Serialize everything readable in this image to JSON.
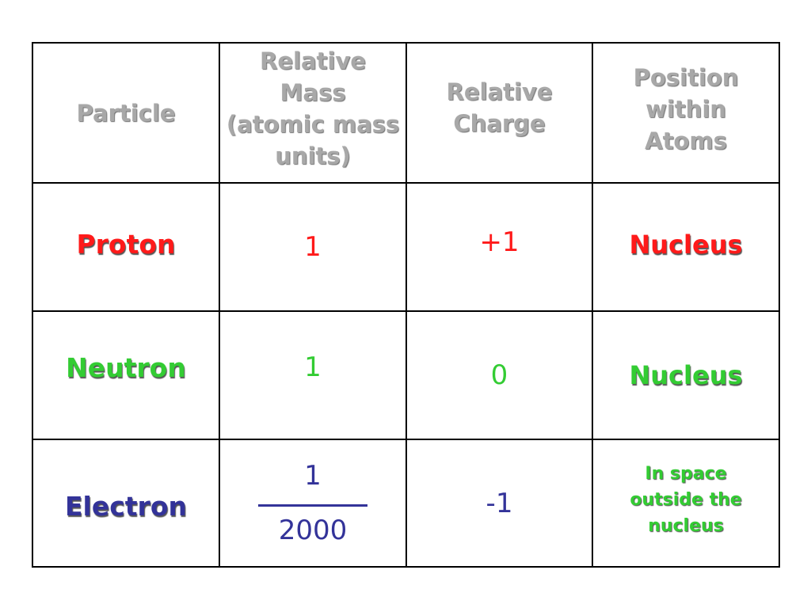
{
  "headers": {
    "particle": "Particle",
    "mass": [
      "Relative",
      "Mass",
      "(atomic mass",
      "units)"
    ],
    "charge": [
      "Relative",
      "Charge"
    ],
    "position": [
      "Position",
      "within",
      "Atoms"
    ]
  },
  "rows": [
    {
      "particle": "Proton",
      "mass": "1",
      "charge": "+1",
      "position": "Nucleus",
      "color": "#ff1a1a"
    },
    {
      "particle": "Neutron",
      "mass": "1",
      "charge": "0",
      "position": "Nucleus",
      "color": "#33cc33"
    },
    {
      "particle": "Electron",
      "mass_numerator": "1",
      "mass_denominator": "2000",
      "charge": "-1",
      "position_lines": [
        "In space",
        "outside the",
        "nucleus"
      ],
      "color": "#333399",
      "position_color": "#33cc33"
    }
  ]
}
